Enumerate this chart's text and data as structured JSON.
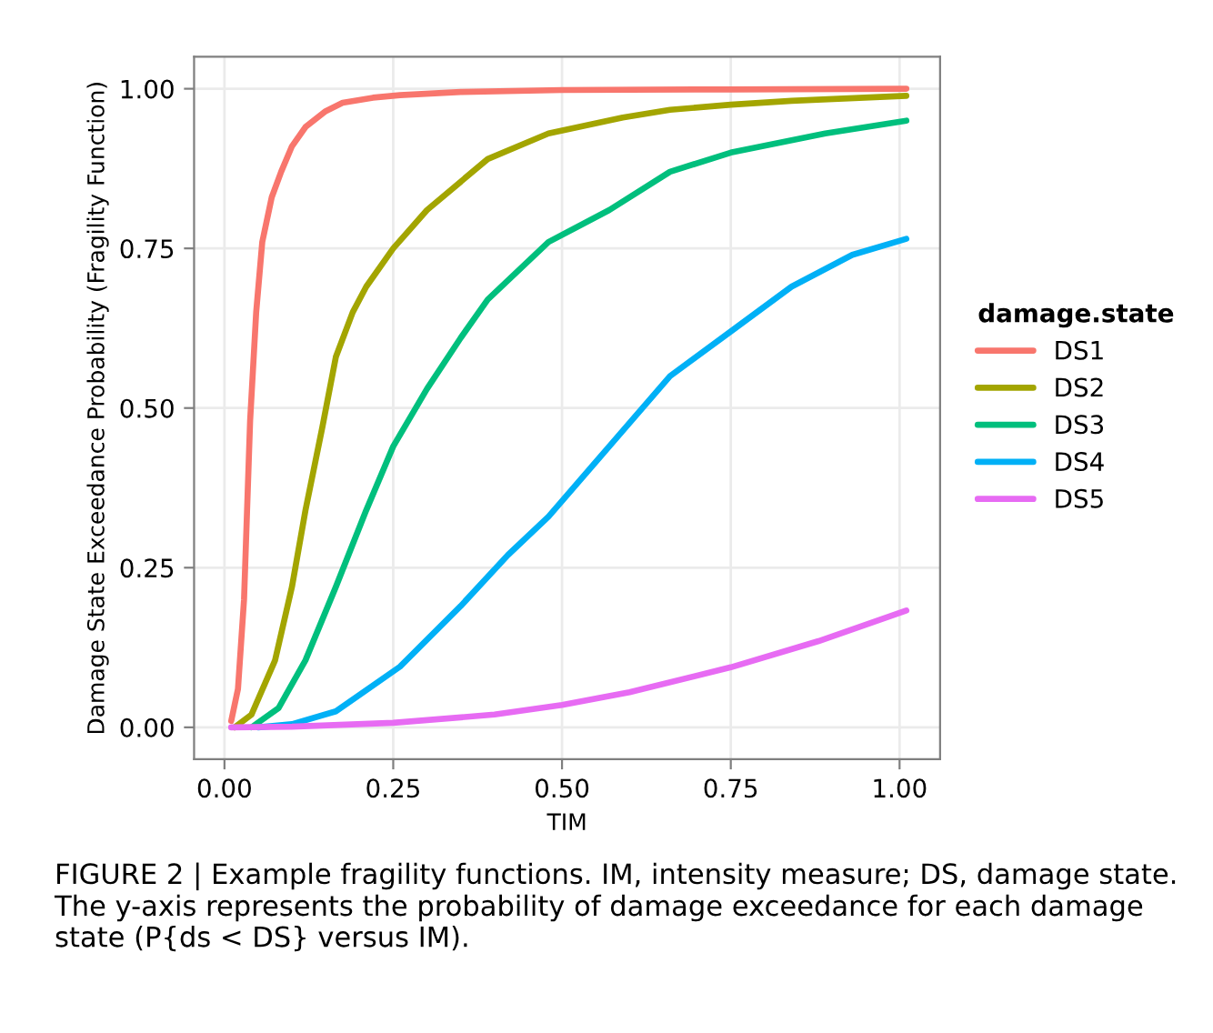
{
  "chart_data": {
    "type": "line",
    "xlabel": "TIM",
    "ylabel": "Damage State Exceedance Probability (Fragility Function)",
    "legend_title": "damage.state",
    "legend": "right",
    "grid": true,
    "marker": "none",
    "line_style": "solid",
    "xlim": [
      -0.045,
      1.06
    ],
    "ylim": [
      -0.05,
      1.05
    ],
    "xticks": [
      {
        "value": 0,
        "label": "0.00"
      },
      {
        "value": 0.25,
        "label": "0.25"
      },
      {
        "value": 0.5,
        "label": "0.50"
      },
      {
        "value": 0.75,
        "label": "0.75"
      },
      {
        "value": 1,
        "label": "1.00"
      }
    ],
    "yticks": [
      {
        "value": 0,
        "label": "0.00"
      },
      {
        "value": 0.25,
        "label": "0.25"
      },
      {
        "value": 0.5,
        "label": "0.50"
      },
      {
        "value": 0.75,
        "label": "0.75"
      },
      {
        "value": 1,
        "label": "1.00"
      }
    ],
    "series": [
      {
        "name": "DS1",
        "color": "#f8766d",
        "x": [
          0.01,
          0.02,
          0.029,
          0.038,
          0.047,
          0.056,
          0.07,
          0.084,
          0.1,
          0.12,
          0.15,
          0.175,
          0.22,
          0.26,
          0.35,
          0.5,
          0.75,
          1.01
        ],
        "values": [
          0.01,
          0.06,
          0.2,
          0.48,
          0.65,
          0.76,
          0.83,
          0.87,
          0.91,
          0.94,
          0.965,
          0.978,
          0.986,
          0.99,
          0.995,
          0.998,
          0.999,
          1.0
        ]
      },
      {
        "name": "DS2",
        "color": "#a3a500",
        "x": [
          0.015,
          0.04,
          0.075,
          0.1,
          0.12,
          0.145,
          0.165,
          0.19,
          0.21,
          0.25,
          0.3,
          0.39,
          0.48,
          0.59,
          0.66,
          0.75,
          0.84,
          1.01
        ],
        "values": [
          0.0,
          0.02,
          0.105,
          0.22,
          0.34,
          0.47,
          0.58,
          0.65,
          0.69,
          0.75,
          0.81,
          0.89,
          0.93,
          0.955,
          0.967,
          0.975,
          0.981,
          0.989
        ]
      },
      {
        "name": "DS3",
        "color": "#00bf7d",
        "x": [
          0.04,
          0.08,
          0.12,
          0.165,
          0.21,
          0.25,
          0.3,
          0.35,
          0.39,
          0.48,
          0.57,
          0.66,
          0.75,
          0.89,
          1.01
        ],
        "values": [
          0.0,
          0.03,
          0.105,
          0.22,
          0.34,
          0.44,
          0.53,
          0.61,
          0.67,
          0.76,
          0.81,
          0.87,
          0.9,
          0.93,
          0.95
        ]
      },
      {
        "name": "DS4",
        "color": "#00b0f6",
        "x": [
          0.05,
          0.1,
          0.165,
          0.26,
          0.35,
          0.42,
          0.48,
          0.57,
          0.66,
          0.75,
          0.84,
          0.93,
          1.01
        ],
        "values": [
          0.0,
          0.005,
          0.025,
          0.095,
          0.19,
          0.27,
          0.33,
          0.44,
          0.55,
          0.62,
          0.69,
          0.74,
          0.765
        ]
      },
      {
        "name": "DS5",
        "color": "#e76bf3",
        "x": [
          0.01,
          0.1,
          0.25,
          0.4,
          0.5,
          0.6,
          0.75,
          0.88,
          1.01
        ],
        "values": [
          0.0,
          0.001,
          0.007,
          0.02,
          0.035,
          0.055,
          0.094,
          0.135,
          0.183
        ]
      }
    ],
    "annotations": [
      "FIGURE 2 | Example fragility functions. IM, intensity measure; DS, damage state. The y-axis represents the probability of damage exceedance for each damage state (P{ds < DS} versus IM)."
    ]
  }
}
